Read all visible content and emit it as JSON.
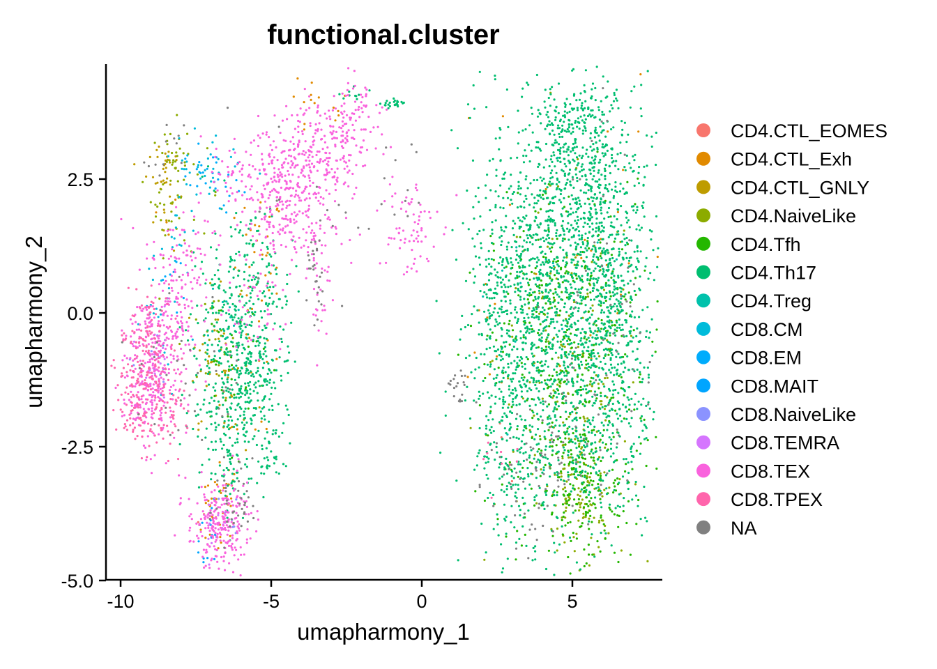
{
  "chart_data": {
    "type": "scatter",
    "title": "functional.cluster",
    "xlabel": "umapharmony_1",
    "ylabel": "umapharmony_2",
    "xlim": [
      -10.5,
      8
    ],
    "ylim": [
      -5,
      4.6
    ],
    "xticks": [
      {
        "value": -10,
        "label": "-10"
      },
      {
        "value": -5,
        "label": "-5"
      },
      {
        "value": 0,
        "label": "0"
      },
      {
        "value": 5,
        "label": "5"
      }
    ],
    "yticks": [
      {
        "value": 2.5,
        "label": "2.5"
      },
      {
        "value": 0.0,
        "label": "0.0"
      },
      {
        "value": -2.5,
        "label": "-2.5"
      },
      {
        "value": -5.0,
        "label": "-5.0"
      }
    ],
    "grid": false,
    "legend_position": "right",
    "series": [
      {
        "name": "CD4.CTL_EOMES",
        "color": "#F8766D",
        "clusters": [
          [
            2.8,
            -2.9,
            0.5,
            0.6,
            4
          ],
          [
            -6.6,
            -3.7,
            0.4,
            0.4,
            4
          ]
        ]
      },
      {
        "name": "CD4.CTL_Exh",
        "color": "#E18A00",
        "clusters": [
          [
            -6.6,
            -3.4,
            0.3,
            0.3,
            25
          ],
          [
            -5.4,
            0.9,
            0.4,
            0.7,
            35
          ],
          [
            -7.0,
            -4.0,
            0.3,
            0.3,
            12
          ],
          [
            -3.6,
            3.8,
            0.7,
            0.3,
            15
          ],
          [
            -8.3,
            1.8,
            0.3,
            0.3,
            5
          ],
          [
            2.1,
            -0.3,
            0.3,
            0.6,
            8
          ],
          [
            5.0,
            1.5,
            1.5,
            2.0,
            25
          ],
          [
            -5.6,
            -1.3,
            0.6,
            0.8,
            10
          ]
        ]
      },
      {
        "name": "CD4.CTL_GNLY",
        "color": "#BE9C00",
        "clusters": [
          [
            -8.5,
            2.8,
            0.3,
            0.3,
            25
          ],
          [
            -8.5,
            2.2,
            0.3,
            0.5,
            15
          ],
          [
            -7.0,
            -0.8,
            0.4,
            0.6,
            30
          ],
          [
            -6.5,
            -1.6,
            0.4,
            0.6,
            20
          ]
        ]
      },
      {
        "name": "CD4.NaiveLike",
        "color": "#8CAB00",
        "clusters": [
          [
            -8.4,
            2.3,
            0.3,
            0.6,
            40
          ],
          [
            -8.1,
            2.9,
            0.2,
            0.2,
            12
          ],
          [
            -7.5,
            2.2,
            0.4,
            0.4,
            12
          ],
          [
            4.8,
            -0.8,
            1.2,
            1.5,
            150
          ],
          [
            5.3,
            -2.8,
            0.6,
            0.6,
            60
          ],
          [
            5.2,
            -3.6,
            0.6,
            0.5,
            60
          ],
          [
            -7.0,
            -0.6,
            0.5,
            0.5,
            25
          ]
        ]
      },
      {
        "name": "CD4.Tfh",
        "color": "#24B700",
        "clusters": [
          [
            5.0,
            -1.2,
            1.3,
            1.8,
            350
          ],
          [
            5.3,
            -3.3,
            0.7,
            0.6,
            150
          ],
          [
            4.5,
            0.0,
            1.2,
            1.0,
            120
          ],
          [
            -6.3,
            -0.8,
            0.6,
            0.8,
            40
          ]
        ]
      },
      {
        "name": "CD4.Th17",
        "color": "#00BE70",
        "clusters": [
          [
            4.9,
            1.5,
            1.3,
            1.5,
            800
          ],
          [
            4.9,
            -1.2,
            1.5,
            1.6,
            900
          ],
          [
            5.4,
            3.0,
            0.8,
            0.6,
            200
          ],
          [
            3.0,
            0.2,
            0.8,
            1.8,
            250
          ],
          [
            6.3,
            0.0,
            0.5,
            1.5,
            250
          ],
          [
            3.2,
            -2.6,
            0.8,
            0.8,
            150
          ],
          [
            2.6,
            0.5,
            0.4,
            0.6,
            60
          ],
          [
            -6.1,
            -0.6,
            0.8,
            1.1,
            400
          ],
          [
            -5.5,
            -1.3,
            0.5,
            0.6,
            100
          ],
          [
            -6.5,
            -1.8,
            0.6,
            0.6,
            80
          ],
          [
            -5.0,
            -2.5,
            0.4,
            0.4,
            30
          ],
          [
            -6.3,
            -3.0,
            0.4,
            0.3,
            30
          ],
          [
            -5.4,
            1.0,
            0.6,
            0.6,
            40
          ],
          [
            -0.9,
            3.9,
            0.2,
            0.05,
            25
          ],
          [
            -2.2,
            4.1,
            0.3,
            0.05,
            10
          ],
          [
            5.0,
            3.6,
            0.6,
            0.2,
            60
          ]
        ]
      },
      {
        "name": "CD4.Treg",
        "color": "#00C1AB",
        "clusters": [
          [
            -6.5,
            -0.3,
            0.4,
            0.4,
            15
          ],
          [
            4.0,
            0.5,
            1.2,
            1.4,
            20
          ]
        ]
      },
      {
        "name": "CD8.CM",
        "color": "#00BBDA",
        "clusters": [
          [
            -7.5,
            2.7,
            0.5,
            0.3,
            25
          ],
          [
            -8.7,
            0.5,
            0.3,
            0.5,
            15
          ],
          [
            -8.0,
            1.2,
            0.4,
            0.3,
            10
          ],
          [
            -6.8,
            2.5,
            0.4,
            0.3,
            12
          ],
          [
            -8.4,
            -0.6,
            0.4,
            0.6,
            10
          ]
        ]
      },
      {
        "name": "CD8.EM",
        "color": "#00ACFC",
        "clusters": [
          [
            -6.8,
            2.5,
            0.4,
            0.3,
            15
          ],
          [
            -7.3,
            2.6,
            0.4,
            0.2,
            12
          ],
          [
            -8.3,
            0.6,
            0.3,
            0.4,
            8
          ]
        ]
      },
      {
        "name": "CD8.MAIT",
        "color": "#00A5FF",
        "clusters": [
          [
            -7.0,
            -4.0,
            0.3,
            0.3,
            10
          ],
          [
            -7.2,
            -4.4,
            0.2,
            0.15,
            6
          ]
        ]
      },
      {
        "name": "CD8.NaiveLike",
        "color": "#8B93FF",
        "clusters": [
          [
            -8.8,
            -1.1,
            0.3,
            0.3,
            10
          ],
          [
            -6.4,
            -4.0,
            0.3,
            0.3,
            8
          ]
        ]
      },
      {
        "name": "CD8.TEMRA",
        "color": "#D575FE",
        "clusters": [
          [
            -8.9,
            -1.2,
            0.3,
            0.4,
            15
          ],
          [
            -6.8,
            -4.1,
            0.3,
            0.3,
            10
          ]
        ]
      },
      {
        "name": "CD8.TEX",
        "color": "#F962DD",
        "clusters": [
          [
            -4.2,
            2.5,
            0.9,
            0.5,
            250
          ],
          [
            -3.0,
            3.2,
            0.8,
            0.4,
            150
          ],
          [
            -2.2,
            3.8,
            0.5,
            0.3,
            50
          ],
          [
            -5.0,
            2.0,
            0.6,
            0.5,
            100
          ],
          [
            -3.7,
            1.4,
            0.5,
            0.4,
            60
          ],
          [
            -0.5,
            1.6,
            0.5,
            0.5,
            70
          ],
          [
            -8.8,
            -0.8,
            0.5,
            0.8,
            250
          ],
          [
            -9.2,
            -1.5,
            0.4,
            0.5,
            100
          ],
          [
            -8.1,
            0.3,
            0.4,
            0.7,
            80
          ],
          [
            -6.8,
            -4.0,
            0.5,
            0.4,
            200
          ],
          [
            -6.2,
            -3.7,
            0.3,
            0.4,
            40
          ],
          [
            -7.8,
            1.2,
            0.5,
            0.5,
            40
          ],
          [
            -5.5,
            0.0,
            0.5,
            0.5,
            40
          ],
          [
            -3.3,
            0.3,
            0.2,
            0.5,
            20
          ],
          [
            -6.2,
            2.6,
            0.4,
            0.3,
            30
          ]
        ]
      },
      {
        "name": "CD8.TPEX",
        "color": "#FF65AC",
        "clusters": [
          [
            -9.3,
            -1.4,
            0.4,
            0.6,
            150
          ],
          [
            -9.0,
            -0.5,
            0.5,
            0.5,
            80
          ],
          [
            -8.3,
            -1.8,
            0.4,
            0.4,
            40
          ],
          [
            2.7,
            -2.9,
            0.3,
            0.3,
            8
          ]
        ]
      },
      {
        "name": "NA",
        "color": "#808080",
        "clusters": [
          [
            -3.5,
            0.6,
            0.15,
            0.4,
            25
          ],
          [
            1.2,
            -1.4,
            0.2,
            0.2,
            20
          ],
          [
            -6.2,
            -3.6,
            0.4,
            0.4,
            35
          ],
          [
            3.8,
            -3.2,
            0.8,
            0.7,
            60
          ],
          [
            5.3,
            -1.8,
            1.2,
            1.5,
            50
          ],
          [
            -8.5,
            2.9,
            0.3,
            0.3,
            12
          ],
          [
            -8.5,
            -1.0,
            0.8,
            1.0,
            25
          ],
          [
            -0.8,
            2.3,
            0.8,
            0.5,
            12
          ],
          [
            -6.5,
            -1.4,
            0.5,
            0.8,
            15
          ],
          [
            -4.0,
            2.0,
            1.0,
            1.0,
            15
          ],
          [
            6.0,
            1.0,
            0.6,
            2.0,
            25
          ]
        ]
      }
    ]
  }
}
